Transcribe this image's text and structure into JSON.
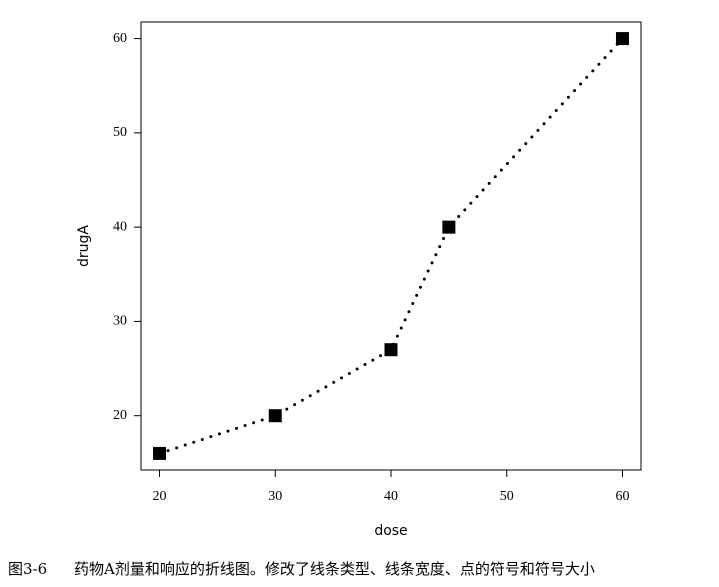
{
  "chart_data": {
    "type": "line",
    "x_label": "dose",
    "y_label": "drugA",
    "x": [
      20,
      30,
      40,
      45,
      60
    ],
    "series": [
      {
        "name": "drugA",
        "color": "#000000",
        "values": [
          16,
          20,
          27,
          40,
          60
        ]
      }
    ],
    "line_style": "dotted",
    "marker": "square",
    "xlim": [
      18.4,
      61.6
    ],
    "ylim": [
      14.24,
      61.76
    ],
    "xticks": [
      20,
      30,
      40,
      50,
      60
    ],
    "yticks": [
      20,
      30,
      40,
      50,
      60
    ]
  },
  "caption": {
    "label": "图3-6",
    "text": "药物A剂量和响应的折线图。修改了线条类型、线条宽度、点的符号和符号大小"
  }
}
